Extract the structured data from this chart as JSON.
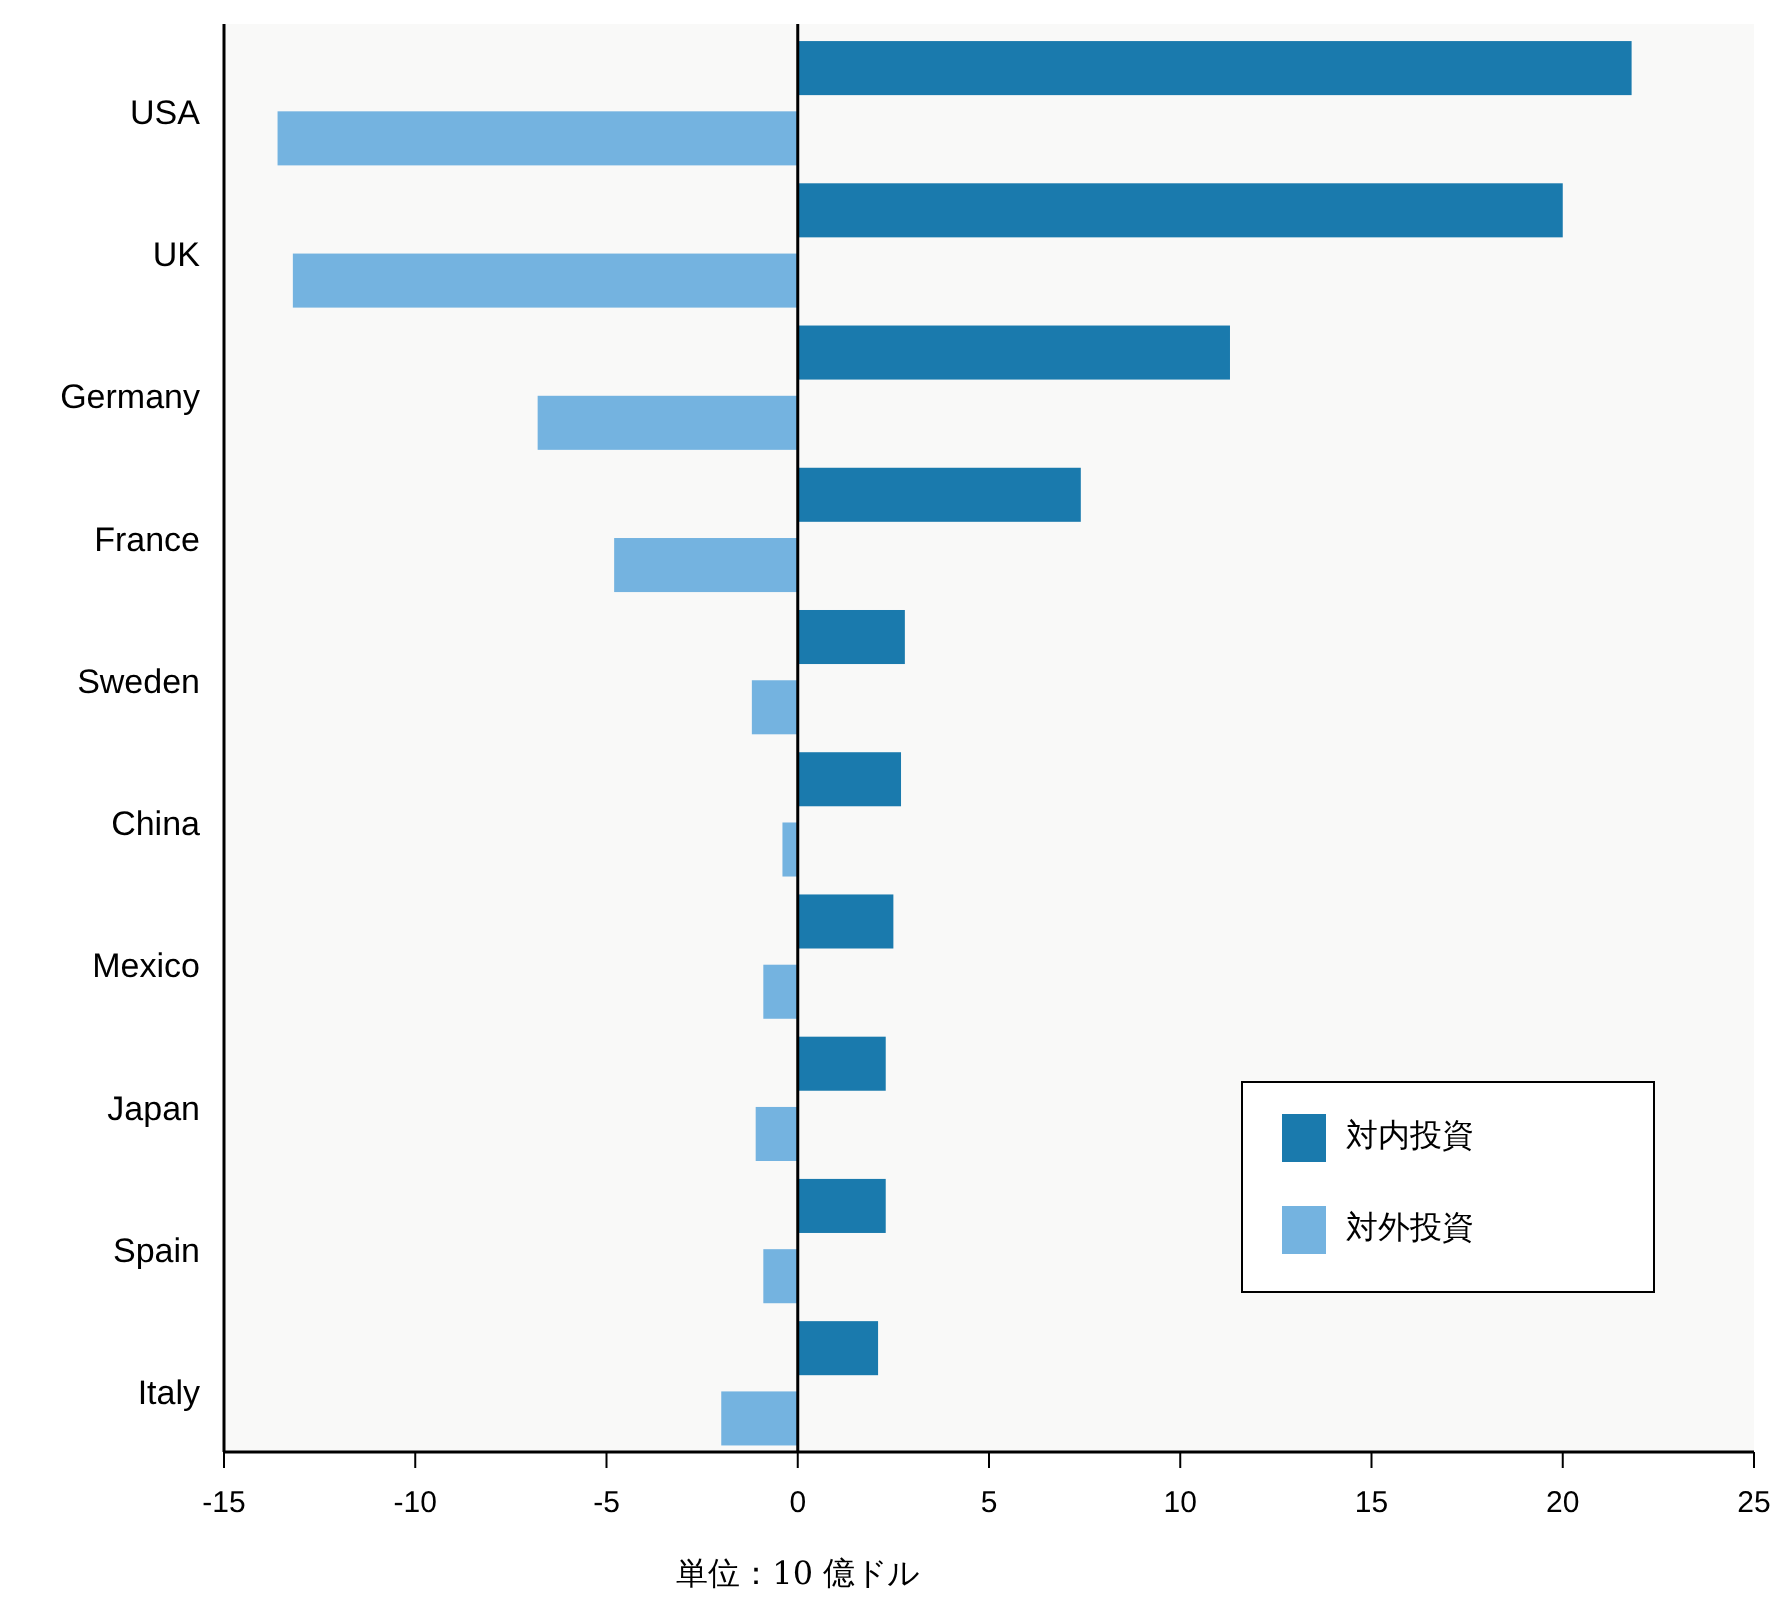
{
  "chart_data": {
    "type": "bar",
    "orientation": "horizontal",
    "categories": [
      "USA",
      "UK",
      "Germany",
      "France",
      "Sweden",
      "China",
      "Mexico",
      "Japan",
      "Spain",
      "Italy"
    ],
    "series": [
      {
        "name": "対内投資",
        "color": "#1a7aad",
        "values": [
          21.8,
          20.0,
          11.3,
          7.4,
          2.8,
          2.7,
          2.5,
          2.3,
          2.3,
          2.1
        ]
      },
      {
        "name": "対外投資",
        "color": "#74b3e0",
        "values": [
          -13.6,
          -13.2,
          -6.8,
          -4.8,
          -1.2,
          -0.4,
          -0.9,
          -1.1,
          -0.9,
          -2.0
        ]
      }
    ],
    "xlim": [
      -15,
      25
    ],
    "xticks": [
      -15,
      -10,
      -5,
      0,
      5,
      10,
      15,
      20,
      25
    ],
    "xlabel": "単位：10 億ドル",
    "legend": "bottom right"
  }
}
